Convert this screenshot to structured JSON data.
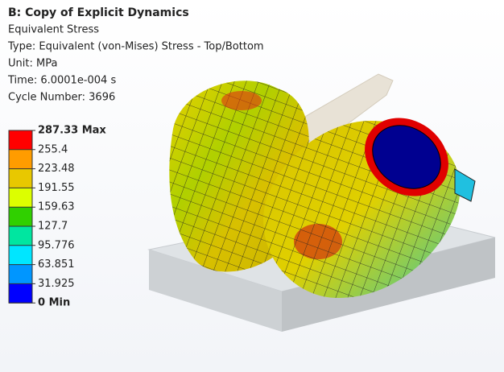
{
  "header": {
    "title": "B: Copy of Explicit Dynamics",
    "lines": [
      "Equivalent Stress",
      "Type: Equivalent (von-Mises) Stress - Top/Bottom",
      "Unit: MPa",
      "Time: 6.0001e-004 s",
      "Cycle Number: 3696"
    ]
  },
  "legend": {
    "labels": [
      "287.33 Max",
      "255.4",
      "223.48",
      "191.55",
      "159.63",
      "127.7",
      "95.776",
      "63.851",
      "31.925",
      "0 Min"
    ],
    "colors": [
      "#ff0000",
      "#ff9c00",
      "#e8c800",
      "#dcff00",
      "#30d000",
      "#00e6a0",
      "#00e6ff",
      "#0096ff",
      "#0000ff"
    ]
  }
}
